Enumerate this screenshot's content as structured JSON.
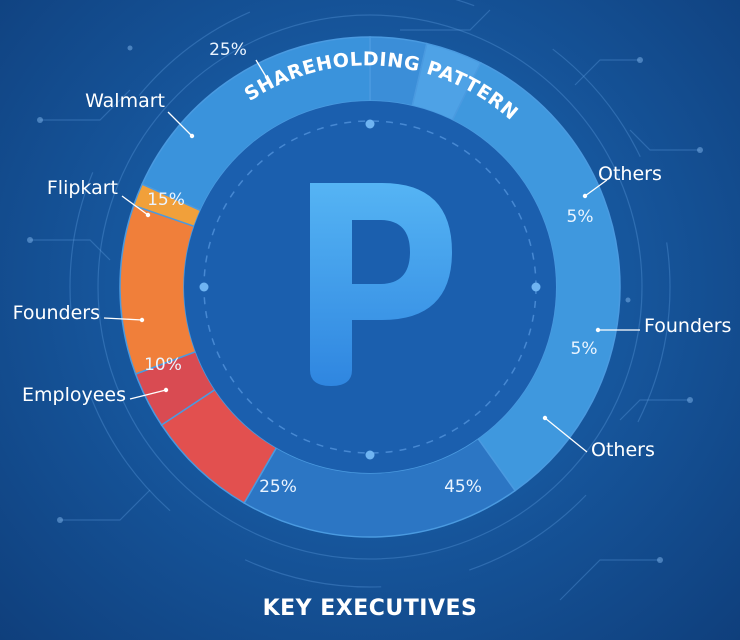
{
  "chart_data": {
    "type": "pie",
    "title": "SHAREHOLDING PATTERN",
    "slices": [
      {
        "label": "Others",
        "value": 5,
        "value_label": "5%",
        "color": "#3b8ed8"
      },
      {
        "label": "Founders",
        "value": 5,
        "value_label": "5%",
        "color": "#4ea2e6"
      },
      {
        "label": "Others",
        "value": 45,
        "value_label": "45%",
        "color": "#3f98de"
      },
      {
        "label": "",
        "value": 25,
        "value_label": "25%",
        "color": "#2c76c4"
      },
      {
        "label": "Employees",
        "value": 10,
        "value_label": "10%",
        "color": "#e2504f"
      },
      {
        "label": "Founders",
        "value": 5,
        "value_label": "",
        "color": "#d94b52"
      },
      {
        "label": "Flipkart",
        "value": 15,
        "value_label": "15%",
        "color": "#f07f3a"
      },
      {
        "label": "Walmart",
        "value": 2,
        "value_label": "",
        "color": "#f1a03a"
      },
      {
        "label": "",
        "value": 25,
        "value_label": "25%",
        "color": "#3a93dc"
      }
    ]
  },
  "center_logo": {
    "letter": "P",
    "color": "#43a5f0"
  },
  "footer": {
    "title": "KEY EXECUTIVES"
  }
}
